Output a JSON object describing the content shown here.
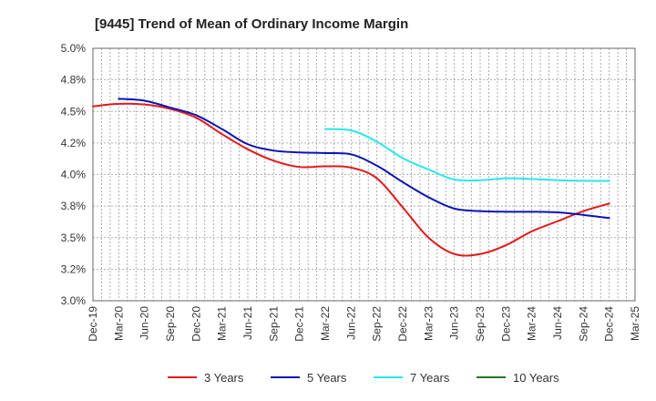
{
  "chart_data": {
    "type": "line",
    "title": "[9445]  Trend of Mean of Ordinary Income Margin",
    "xlabel": "",
    "ylabel": "",
    "x_ticks": [
      "Dec-19",
      "Mar-20",
      "Jun-20",
      "Sep-20",
      "Dec-20",
      "Mar-21",
      "Jun-21",
      "Sep-21",
      "Dec-21",
      "Mar-22",
      "Jun-22",
      "Sep-22",
      "Dec-22",
      "Mar-23",
      "Jun-23",
      "Sep-23",
      "Dec-23",
      "Mar-24",
      "Jun-24",
      "Sep-24",
      "Dec-24",
      "Mar-25"
    ],
    "y_ticks": [
      "3.0%",
      "3.2%",
      "3.5%",
      "3.8%",
      "4.0%",
      "4.2%",
      "4.5%",
      "4.8%",
      "5.0%"
    ],
    "ylim": [
      3.0,
      5.0
    ],
    "grid": true,
    "legend_position": "bottom",
    "series": [
      {
        "name": "3 Years",
        "color": "#e31a1c",
        "points": [
          [
            "Dec-19",
            4.54
          ],
          [
            "Mar-20",
            4.56
          ],
          [
            "Jun-20",
            4.555
          ],
          [
            "Sep-20",
            4.52
          ],
          [
            "Dec-20",
            4.45
          ],
          [
            "Mar-21",
            4.32
          ],
          [
            "Jun-21",
            4.2
          ],
          [
            "Sep-21",
            4.11
          ],
          [
            "Dec-21",
            4.06
          ],
          [
            "Mar-22",
            4.065
          ],
          [
            "Jun-22",
            4.055
          ],
          [
            "Sep-22",
            3.97
          ],
          [
            "Dec-22",
            3.74
          ],
          [
            "Mar-23",
            3.5
          ],
          [
            "Jun-23",
            3.37
          ],
          [
            "Sep-23",
            3.37
          ],
          [
            "Dec-23",
            3.44
          ],
          [
            "Mar-24",
            3.55
          ],
          [
            "Jun-24",
            3.63
          ],
          [
            "Sep-24",
            3.71
          ],
          [
            "Dec-24",
            3.77
          ]
        ]
      },
      {
        "name": "5 Years",
        "color": "#0a14b4",
        "points": [
          [
            "Mar-20",
            4.6
          ],
          [
            "Jun-20",
            4.585
          ],
          [
            "Sep-20",
            4.53
          ],
          [
            "Dec-20",
            4.47
          ],
          [
            "Mar-21",
            4.36
          ],
          [
            "Jun-21",
            4.24
          ],
          [
            "Sep-21",
            4.19
          ],
          [
            "Dec-21",
            4.175
          ],
          [
            "Mar-22",
            4.17
          ],
          [
            "Jun-22",
            4.16
          ],
          [
            "Sep-22",
            4.07
          ],
          [
            "Dec-22",
            3.94
          ],
          [
            "Mar-23",
            3.82
          ],
          [
            "Jun-23",
            3.73
          ],
          [
            "Sep-23",
            3.71
          ],
          [
            "Dec-23",
            3.705
          ],
          [
            "Mar-24",
            3.705
          ],
          [
            "Jun-24",
            3.7
          ],
          [
            "Sep-24",
            3.68
          ],
          [
            "Dec-24",
            3.655
          ]
        ]
      },
      {
        "name": "7 Years",
        "color": "#26e8ec",
        "points": [
          [
            "Mar-22",
            4.36
          ],
          [
            "Jun-22",
            4.35
          ],
          [
            "Sep-22",
            4.26
          ],
          [
            "Dec-22",
            4.13
          ],
          [
            "Mar-23",
            4.04
          ],
          [
            "Jun-23",
            3.96
          ],
          [
            "Sep-23",
            3.955
          ],
          [
            "Dec-23",
            3.97
          ],
          [
            "Mar-24",
            3.965
          ],
          [
            "Jun-24",
            3.955
          ],
          [
            "Sep-24",
            3.95
          ],
          [
            "Dec-24",
            3.95
          ]
        ]
      },
      {
        "name": "10 Years",
        "color": "#1f7a1f",
        "points": []
      }
    ]
  }
}
